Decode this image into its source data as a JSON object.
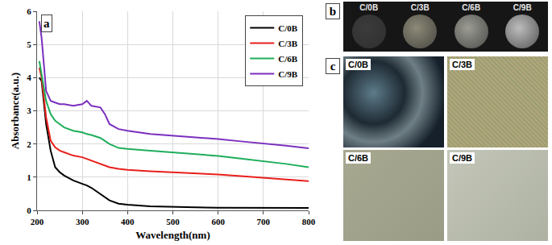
{
  "chart_data": {
    "type": "line",
    "title": null,
    "annotations": [
      "a"
    ],
    "x_label": "Wavelength(nm)",
    "y_label": "Absorbance(a.u.)",
    "x": [
      205,
      210,
      220,
      230,
      240,
      250,
      260,
      280,
      300,
      310,
      320,
      340,
      350,
      360,
      380,
      400,
      450,
      500,
      550,
      600,
      650,
      700,
      750,
      800
    ],
    "series": [
      {
        "name": "C/0B",
        "color": "#000000",
        "values": [
          4.0,
          3.9,
          2.6,
          1.8,
          1.3,
          1.15,
          1.05,
          0.9,
          0.8,
          0.75,
          0.68,
          0.5,
          0.4,
          0.3,
          0.2,
          0.17,
          0.12,
          0.1,
          0.09,
          0.08,
          0.08,
          0.07,
          0.07,
          0.07
        ]
      },
      {
        "name": "C/3B",
        "color": "#e8201c",
        "values": [
          4.3,
          4.0,
          2.8,
          2.1,
          1.9,
          1.8,
          1.75,
          1.65,
          1.6,
          1.55,
          1.5,
          1.4,
          1.35,
          1.3,
          1.25,
          1.22,
          1.18,
          1.15,
          1.12,
          1.08,
          1.03,
          0.98,
          0.93,
          0.88
        ]
      },
      {
        "name": "C/6B",
        "color": "#1fae5a",
        "values": [
          4.5,
          4.1,
          3.3,
          2.9,
          2.7,
          2.6,
          2.5,
          2.4,
          2.35,
          2.3,
          2.27,
          2.18,
          2.1,
          2.0,
          1.88,
          1.85,
          1.8,
          1.75,
          1.7,
          1.64,
          1.56,
          1.48,
          1.4,
          1.3
        ]
      },
      {
        "name": "C/9B",
        "color": "#7b2fbf",
        "values": [
          5.7,
          5.2,
          3.6,
          3.3,
          3.25,
          3.2,
          3.2,
          3.15,
          3.2,
          3.3,
          3.15,
          3.1,
          2.9,
          2.6,
          2.45,
          2.4,
          2.3,
          2.25,
          2.2,
          2.15,
          2.08,
          2.02,
          1.95,
          1.87
        ]
      }
    ],
    "xlim": [
      200,
      800
    ],
    "xticks": [
      200,
      300,
      400,
      500,
      600,
      700,
      800
    ],
    "ylim": [
      0,
      6
    ],
    "yticks": [
      0,
      1,
      2,
      3,
      4,
      5,
      6
    ],
    "grid": true,
    "legend": "upper right"
  },
  "panel_b": {
    "label": "b",
    "samples": [
      "C/0B",
      "C/3B",
      "C/6B",
      "C/9B"
    ]
  },
  "panel_c": {
    "label": "c",
    "samples": [
      "C/0B",
      "C/3B",
      "C/6B",
      "C/9B"
    ]
  }
}
